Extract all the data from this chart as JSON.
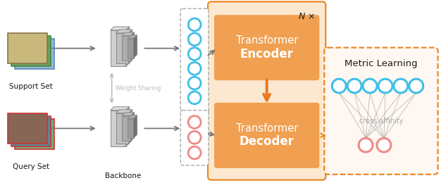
{
  "fig_width": 6.26,
  "fig_height": 2.6,
  "dpi": 100,
  "bg_color": "#ffffff",
  "orange_box_bg": "#f0a050",
  "orange_box_light": "#fce8d0",
  "orange_border": "#e8821a",
  "cyan_circle_color": "#40bfe8",
  "pink_circle_color": "#f08888",
  "gray_text": "#bbbbbb",
  "dark_text": "#1a1a1a",
  "arrow_orange": "#e87820",
  "arrow_gray": "#777777",
  "support_label": "Support Set",
  "query_label": "Query Set",
  "backbone_label": "Backbone",
  "weight_sharing_label": "Weight Sharing",
  "encoder_line1": "Transformer",
  "encoder_line2": "Encoder",
  "decoder_line1": "Transformer",
  "decoder_line2": "Decoder",
  "metric_label": "Metric Learning",
  "cross_affinity_label": "cross affinity",
  "N_label": "N ×"
}
